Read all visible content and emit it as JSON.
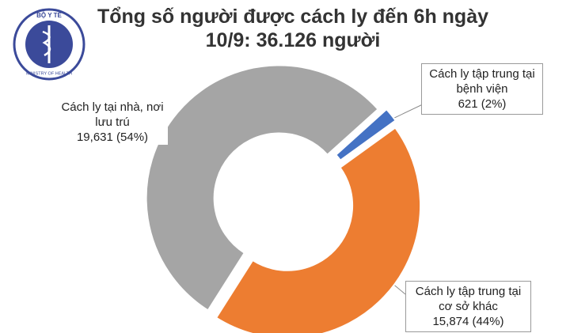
{
  "logo": {
    "top": "BỘ Y TẾ",
    "bottom": "MINISTRY OF HEALTH"
  },
  "chart_data": {
    "type": "pie",
    "title": "Tổng số người được cách ly đến 6h ngày\n10/9: 36.126 người",
    "categories": [
      "Cách ly tập trung tại bệnh viện",
      "Cách ly tập trung tại cơ sở khác",
      "Cách ly tại nhà, nơi lưu trú"
    ],
    "values": [
      621,
      15874,
      19631
    ],
    "value_labels": [
      "621 (2%)",
      "15,874 (44%)",
      "19,631 (54%)"
    ],
    "colors": [
      "#4472c4",
      "#ed7d31",
      "#a5a5a5"
    ]
  }
}
